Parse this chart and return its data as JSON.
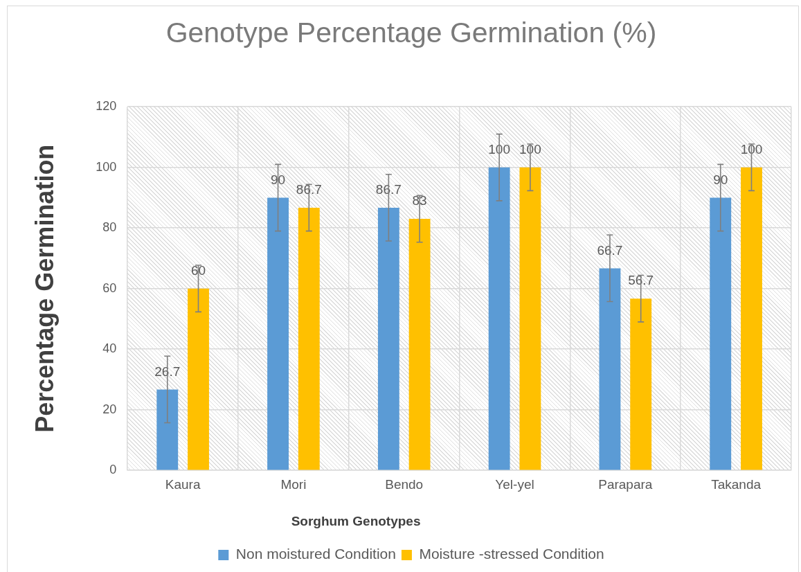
{
  "chart_data": {
    "type": "bar",
    "title": "Genotype Percentage Germination (%)",
    "xlabel": "Sorghum Genotypes",
    "ylabel": "Percentage Germination",
    "categories": [
      "Kaura",
      "Mori",
      "Bendo",
      "Yel-yel",
      "Parapara",
      "Takanda"
    ],
    "series": [
      {
        "name": "Non moistured Condition",
        "color": "#5b9bd5",
        "values": [
          26.7,
          90,
          86.7,
          100,
          66.7,
          90
        ],
        "errors": [
          11,
          11,
          11,
          11,
          11,
          11
        ]
      },
      {
        "name": "Moisture -stressed Condition",
        "color": "#ffc000",
        "values": [
          60,
          86.7,
          83,
          100,
          56.7,
          100
        ],
        "errors": [
          7.7,
          7.7,
          7.7,
          7.7,
          7.7,
          7.7
        ]
      }
    ],
    "ylim": [
      0,
      120
    ],
    "yticks": [
      0,
      20,
      40,
      60,
      80,
      100,
      120
    ],
    "grid": true,
    "legend": "bottom",
    "data_labels": true
  }
}
